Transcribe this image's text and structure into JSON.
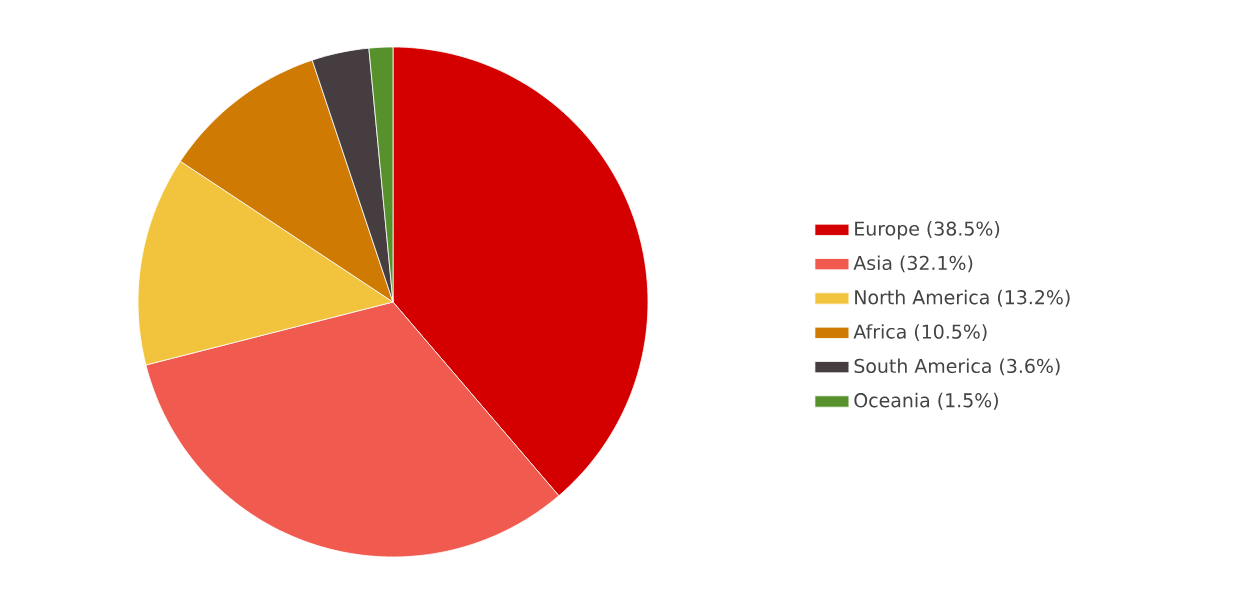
{
  "chart_data": {
    "type": "pie",
    "categories": [
      "Europe (38.5%)",
      "Asia (32.1%)",
      "North America (13.2%)",
      "Africa (10.5%)",
      "South America (3.6%)",
      "Oceania (1.5%)"
    ],
    "values": [
      38.5,
      32.1,
      13.2,
      10.5,
      3.6,
      1.5
    ],
    "colors": [
      "#d40000",
      "#f05a4f",
      "#f2c43d",
      "#cf7a03",
      "#463d40",
      "#56912b"
    ],
    "legend": "right"
  }
}
